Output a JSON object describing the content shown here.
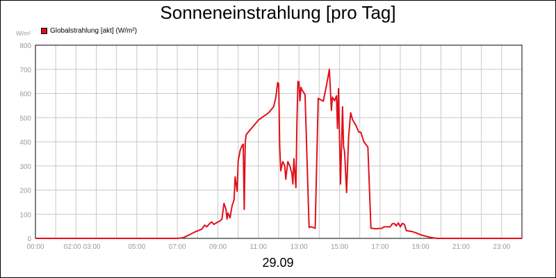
{
  "chart_data": {
    "type": "line",
    "title": "Sonneneinstrahlung [pro Tag]",
    "unit_label": "W/m²",
    "date_label": "29.09",
    "xlabel": "",
    "ylabel": "",
    "ylim": [
      0,
      800
    ],
    "y_ticks": [
      "0",
      "100",
      "200",
      "300",
      "400",
      "500",
      "600",
      "700",
      "800"
    ],
    "xlim": [
      0,
      24
    ],
    "x_ticks": [
      {
        "x": 0,
        "label": "00:00"
      },
      {
        "x": 2.3,
        "label": "02:00 03:00"
      },
      {
        "x": 5,
        "label": "05:00"
      },
      {
        "x": 7,
        "label": "07:00"
      },
      {
        "x": 9,
        "label": "09:00"
      },
      {
        "x": 11,
        "label": "11:00"
      },
      {
        "x": 13,
        "label": "13:00"
      },
      {
        "x": 15,
        "label": "15:00"
      },
      {
        "x": 17,
        "label": "17:00"
      },
      {
        "x": 19,
        "label": "19:00"
      },
      {
        "x": 21,
        "label": "21:00"
      },
      {
        "x": 23,
        "label": "23:00"
      }
    ],
    "grid": true,
    "series_color": "#e0101a",
    "series": [
      {
        "name": "Globalstrahlung [akt] (W/m²)",
        "points": [
          [
            0,
            0
          ],
          [
            7.0,
            0
          ],
          [
            7.3,
            3
          ],
          [
            7.6,
            15
          ],
          [
            7.9,
            28
          ],
          [
            8.2,
            38
          ],
          [
            8.35,
            55
          ],
          [
            8.45,
            48
          ],
          [
            8.6,
            62
          ],
          [
            8.7,
            68
          ],
          [
            8.8,
            58
          ],
          [
            9.0,
            68
          ],
          [
            9.1,
            72
          ],
          [
            9.2,
            80
          ],
          [
            9.3,
            145
          ],
          [
            9.4,
            120
          ],
          [
            9.45,
            80
          ],
          [
            9.5,
            105
          ],
          [
            9.6,
            85
          ],
          [
            9.7,
            135
          ],
          [
            9.8,
            160
          ],
          [
            9.85,
            255
          ],
          [
            9.95,
            195
          ],
          [
            10.0,
            320
          ],
          [
            10.1,
            365
          ],
          [
            10.2,
            385
          ],
          [
            10.25,
            390
          ],
          [
            10.3,
            120
          ],
          [
            10.35,
            400
          ],
          [
            10.4,
            430
          ],
          [
            11.0,
            490
          ],
          [
            11.5,
            520
          ],
          [
            11.75,
            545
          ],
          [
            11.85,
            580
          ],
          [
            11.95,
            645
          ],
          [
            12.0,
            640
          ],
          [
            12.05,
            380
          ],
          [
            12.1,
            280
          ],
          [
            12.2,
            318
          ],
          [
            12.3,
            300
          ],
          [
            12.35,
            245
          ],
          [
            12.45,
            318
          ],
          [
            12.55,
            300
          ],
          [
            12.65,
            270
          ],
          [
            12.7,
            225
          ],
          [
            12.75,
            330
          ],
          [
            12.85,
            210
          ],
          [
            12.9,
            480
          ],
          [
            12.95,
            650
          ],
          [
            13.0,
            648
          ],
          [
            13.05,
            570
          ],
          [
            13.1,
            625
          ],
          [
            13.15,
            615
          ],
          [
            13.3,
            595
          ],
          [
            13.5,
            45
          ],
          [
            13.6,
            48
          ],
          [
            13.8,
            42
          ],
          [
            13.95,
            580
          ],
          [
            14.2,
            568
          ],
          [
            14.35,
            630
          ],
          [
            14.5,
            700
          ],
          [
            14.6,
            530
          ],
          [
            14.65,
            585
          ],
          [
            14.75,
            570
          ],
          [
            14.85,
            590
          ],
          [
            14.9,
            455
          ],
          [
            14.95,
            620
          ],
          [
            15.05,
            225
          ],
          [
            15.15,
            545
          ],
          [
            15.2,
            380
          ],
          [
            15.25,
            360
          ],
          [
            15.35,
            190
          ],
          [
            15.45,
            420
          ],
          [
            15.55,
            520
          ],
          [
            15.65,
            490
          ],
          [
            15.8,
            470
          ],
          [
            15.95,
            440
          ],
          [
            16.05,
            440
          ],
          [
            16.2,
            400
          ],
          [
            16.4,
            378
          ],
          [
            16.55,
            42
          ],
          [
            16.8,
            40
          ],
          [
            17.1,
            42
          ],
          [
            17.2,
            48
          ],
          [
            17.5,
            48
          ],
          [
            17.6,
            60
          ],
          [
            17.7,
            62
          ],
          [
            17.8,
            52
          ],
          [
            17.9,
            64
          ],
          [
            18.0,
            48
          ],
          [
            18.1,
            62
          ],
          [
            18.2,
            58
          ],
          [
            18.3,
            32
          ],
          [
            18.6,
            28
          ],
          [
            18.8,
            22
          ],
          [
            19.0,
            15
          ],
          [
            19.2,
            10
          ],
          [
            19.5,
            4
          ],
          [
            19.8,
            0
          ],
          [
            24,
            0
          ]
        ]
      }
    ]
  }
}
